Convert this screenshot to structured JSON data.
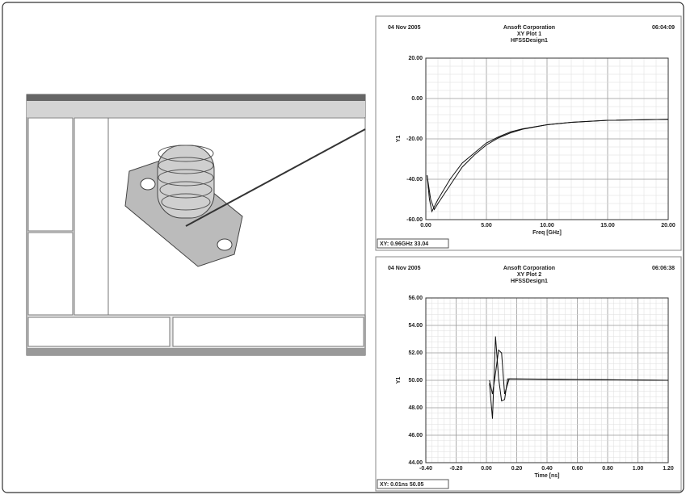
{
  "chart_data": [
    {
      "type": "line",
      "date": "04 Nov 2005",
      "title": "Ansoft Corporation",
      "subtitle": "XY Plot 1",
      "design": "HFSSDesign1",
      "time": "06:04:09",
      "y_label": "Y1",
      "x_label": "Freq [GHz]",
      "readout": "XY: 0.96GHz 33.04",
      "grid": true,
      "xlim": [
        0,
        20
      ],
      "ylim": [
        -60,
        20
      ],
      "xticks": [
        {
          "value": 0,
          "label": "0.00"
        },
        {
          "value": 5,
          "label": "5.00"
        },
        {
          "value": 10,
          "label": "10.00"
        },
        {
          "value": 15,
          "label": "15.00"
        },
        {
          "value": 20,
          "label": "20.00"
        }
      ],
      "yticks": [
        {
          "value": -60,
          "label": "-60.00"
        },
        {
          "value": -40,
          "label": "-40.00"
        },
        {
          "value": -20,
          "label": "-20.00"
        },
        {
          "value": 0,
          "label": "0.00"
        },
        {
          "value": 20,
          "label": "20.00"
        }
      ],
      "series": [
        {
          "color": "#111111",
          "x": [
            0.1,
            0.3,
            0.5,
            1,
            2,
            3,
            4,
            5,
            6,
            7,
            8,
            10,
            12,
            15,
            20
          ],
          "values": [
            -38,
            -50,
            -56,
            -50,
            -40,
            -32,
            -27,
            -22,
            -19,
            -16.5,
            -15,
            -13,
            -11.8,
            -10.8,
            -10.3
          ]
        },
        {
          "color": "#111111",
          "x": [
            0.1,
            0.4,
            0.7,
            1,
            2,
            3,
            4,
            5,
            6,
            7,
            8,
            10,
            12,
            15,
            20
          ],
          "values": [
            -38,
            -50,
            -55,
            -52,
            -43,
            -34,
            -28,
            -23,
            -19.5,
            -17,
            -15.2,
            -13,
            -11.8,
            -10.8,
            -10.3
          ]
        }
      ]
    },
    {
      "type": "line",
      "date": "04 Nov 2005",
      "title": "Ansoft Corporation",
      "subtitle": "XY Plot 2",
      "design": "HFSSDesign1",
      "time": "06:06:38",
      "y_label": "Y1",
      "x_label": "Time [ns]",
      "readout": "XY: 0.01ns 50.05",
      "grid": true,
      "xlim": [
        -0.4,
        1.2
      ],
      "ylim": [
        44,
        56
      ],
      "xticks": [
        {
          "value": -0.4,
          "label": "-0.40"
        },
        {
          "value": -0.2,
          "label": "-0.20"
        },
        {
          "value": 0,
          "label": "0.00"
        },
        {
          "value": 0.2,
          "label": "0.20"
        },
        {
          "value": 0.4,
          "label": "0.40"
        },
        {
          "value": 0.6,
          "label": "0.60"
        },
        {
          "value": 0.8,
          "label": "0.80"
        },
        {
          "value": 1,
          "label": "1.00"
        },
        {
          "value": 1.2,
          "label": "1.20"
        }
      ],
      "yticks": [
        {
          "value": 44,
          "label": "44.00"
        },
        {
          "value": 46,
          "label": "46.00"
        },
        {
          "value": 48,
          "label": "48.00"
        },
        {
          "value": 50,
          "label": "50.00"
        },
        {
          "value": 52,
          "label": "52.00"
        },
        {
          "value": 54,
          "label": "54.00"
        },
        {
          "value": 56,
          "label": "56.00"
        }
      ],
      "series": [
        {
          "color": "#111111",
          "x": [
            0.02,
            0.04,
            0.06,
            0.08,
            0.1,
            0.12,
            0.14,
            0.2,
            1.2
          ],
          "values": [
            49.8,
            47.2,
            53.2,
            50.2,
            48.5,
            48.6,
            50.1,
            50.1,
            50.0
          ]
        },
        {
          "color": "#111111",
          "x": [
            0.02,
            0.04,
            0.06,
            0.08,
            0.1,
            0.12,
            0.15,
            1.2
          ],
          "values": [
            50.0,
            49.0,
            50.5,
            52.2,
            52.0,
            49.0,
            50.1,
            50.0
          ]
        }
      ]
    }
  ]
}
